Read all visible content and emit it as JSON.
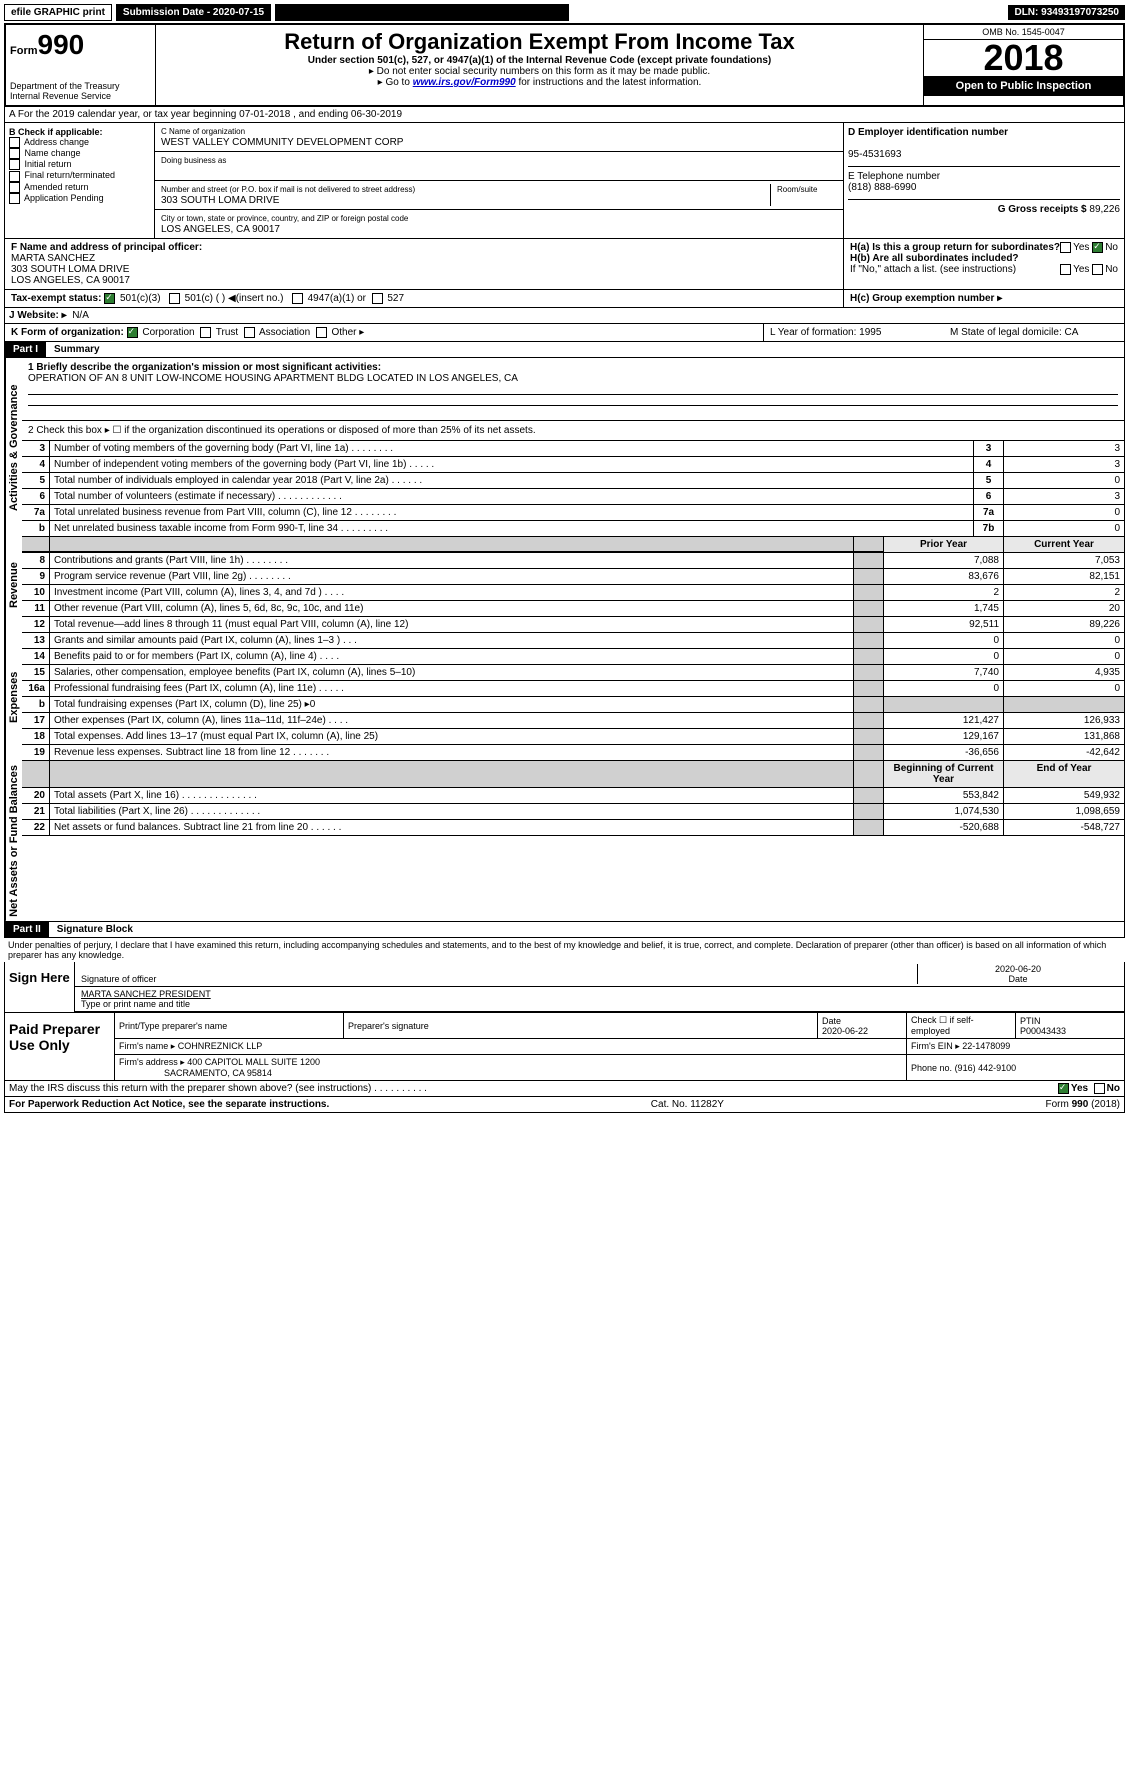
{
  "topbar": {
    "efile": "efile GRAPHIC print",
    "submission_label": "Submission Date - 2020-07-15",
    "dln": "DLN: 93493197073250"
  },
  "header": {
    "form_prefix": "Form",
    "form_number": "990",
    "dept": "Department of the Treasury\nInternal Revenue Service",
    "title": "Return of Organization Exempt From Income Tax",
    "subtitle": "Under section 501(c), 527, or 4947(a)(1) of the Internal Revenue Code (except private foundations)",
    "note1": "▸ Do not enter social security numbers on this form as it may be made public.",
    "note2": "▸ Go to www.irs.gov/Form990 for instructions and the latest information.",
    "omb": "OMB No. 1545-0047",
    "year": "2018",
    "open": "Open to Public Inspection"
  },
  "section_a": "A For the 2019 calendar year, or tax year beginning 07-01-2018   , and ending 06-30-2019",
  "box_b": {
    "label": "B Check if applicable:",
    "opts": [
      "Address change",
      "Name change",
      "Initial return",
      "Final return/terminated",
      "Amended return",
      "Application Pending"
    ]
  },
  "box_c": {
    "name_label": "C Name of organization",
    "name": "WEST VALLEY COMMUNITY DEVELOPMENT CORP",
    "dba_label": "Doing business as",
    "addr_label": "Number and street (or P.O. box if mail is not delivered to street address)",
    "room_label": "Room/suite",
    "addr": "303 SOUTH LOMA DRIVE",
    "city_label": "City or town, state or province, country, and ZIP or foreign postal code",
    "city": "LOS ANGELES, CA  90017"
  },
  "box_d": {
    "label": "D Employer identification number",
    "ein": "95-4531693",
    "phone_label": "E Telephone number",
    "phone": "(818) 888-6990",
    "gross_label": "G Gross receipts $",
    "gross": "89,226"
  },
  "box_f": {
    "label": "F Name and address of principal officer:",
    "name": "MARTA SANCHEZ",
    "addr1": "303 SOUTH LOMA DRIVE",
    "addr2": "LOS ANGELES, CA  90017"
  },
  "box_h": {
    "a": "H(a)  Is this a group return for subordinates?",
    "b": "H(b)  Are all subordinates included?",
    "note": "If \"No,\" attach a list. (see instructions)",
    "c": "H(c)  Group exemption number ▸",
    "yes": "Yes",
    "no": "No"
  },
  "tax_exempt": {
    "label": "Tax-exempt status:",
    "opt1": "501(c)(3)",
    "opt2": "501(c) (  ) ◀(insert no.)",
    "opt3": "4947(a)(1) or",
    "opt4": "527"
  },
  "website": {
    "label": "J   Website: ▸",
    "val": "N/A"
  },
  "box_k": {
    "label": "K Form of organization:",
    "opts": [
      "Corporation",
      "Trust",
      "Association",
      "Other ▸"
    ],
    "l": "L Year of formation: 1995",
    "m": "M State of legal domicile: CA"
  },
  "part1": {
    "header": "Part I",
    "title": "Summary",
    "q1": "1  Briefly describe the organization's mission or most significant activities:",
    "q1_ans": "OPERATION OF AN 8 UNIT LOW-INCOME HOUSING APARTMENT BLDG LOCATED IN LOS ANGELES, CA",
    "q2": "2   Check this box ▸ ☐  if the organization discontinued its operations or disposed of more than 25% of its net assets.",
    "sections": {
      "gov": "Activities & Governance",
      "rev": "Revenue",
      "exp": "Expenses",
      "net": "Net Assets or Fund Balances"
    },
    "lines_gov": [
      {
        "n": "3",
        "t": "Number of voting members of the governing body (Part VI, line 1a)  .    .    .    .    .    .    .    .",
        "k": "3",
        "v": "3"
      },
      {
        "n": "4",
        "t": "Number of independent voting members of the governing body (Part VI, line 1b)  .    .    .    .    .",
        "k": "4",
        "v": "3"
      },
      {
        "n": "5",
        "t": "Total number of individuals employed in calendar year 2018 (Part V, line 2a)  .    .    .    .    .    .",
        "k": "5",
        "v": "0"
      },
      {
        "n": "6",
        "t": "Total number of volunteers (estimate if necessary)  .    .    .    .    .    .    .    .    .    .    .    .",
        "k": "6",
        "v": "3"
      },
      {
        "n": "7a",
        "t": "Total unrelated business revenue from Part VIII, column (C), line 12  .    .    .    .    .    .    .    .",
        "k": "7a",
        "v": "0"
      },
      {
        "n": "b",
        "t": "Net unrelated business taxable income from Form 990-T, line 34  .    .    .    .    .    .    .    .    .",
        "k": "7b",
        "v": "0"
      }
    ],
    "col_hdr": {
      "prior": "Prior Year",
      "current": "Current Year",
      "begin": "Beginning of Current Year",
      "end": "End of Year"
    },
    "lines_rev": [
      {
        "n": "8",
        "t": "Contributions and grants (Part VIII, line 1h)  .    .    .    .    .    .    .    .",
        "p": "7,088",
        "c": "7,053"
      },
      {
        "n": "9",
        "t": "Program service revenue (Part VIII, line 2g)  .    .    .    .    .    .    .    .",
        "p": "83,676",
        "c": "82,151"
      },
      {
        "n": "10",
        "t": "Investment income (Part VIII, column (A), lines 3, 4, and 7d )  .    .    .    .",
        "p": "2",
        "c": "2"
      },
      {
        "n": "11",
        "t": "Other revenue (Part VIII, column (A), lines 5, 6d, 8c, 9c, 10c, and 11e)",
        "p": "1,745",
        "c": "20"
      },
      {
        "n": "12",
        "t": "Total revenue—add lines 8 through 11 (must equal Part VIII, column (A), line 12)",
        "p": "92,511",
        "c": "89,226"
      }
    ],
    "lines_exp": [
      {
        "n": "13",
        "t": "Grants and similar amounts paid (Part IX, column (A), lines 1–3 )  .    .    .",
        "p": "0",
        "c": "0"
      },
      {
        "n": "14",
        "t": "Benefits paid to or for members (Part IX, column (A), line 4)  .    .    .    .",
        "p": "0",
        "c": "0"
      },
      {
        "n": "15",
        "t": "Salaries, other compensation, employee benefits (Part IX, column (A), lines 5–10)",
        "p": "7,740",
        "c": "4,935"
      },
      {
        "n": "16a",
        "t": "Professional fundraising fees (Part IX, column (A), line 11e)  .    .    .    .    .",
        "p": "0",
        "c": "0"
      },
      {
        "n": "b",
        "t": "Total fundraising expenses (Part IX, column (D), line 25) ▸0",
        "p": "",
        "c": "",
        "shade": true
      },
      {
        "n": "17",
        "t": "Other expenses (Part IX, column (A), lines 11a–11d, 11f–24e)  .    .    .    .",
        "p": "121,427",
        "c": "126,933"
      },
      {
        "n": "18",
        "t": "Total expenses. Add lines 13–17 (must equal Part IX, column (A), line 25)",
        "p": "129,167",
        "c": "131,868"
      },
      {
        "n": "19",
        "t": "Revenue less expenses. Subtract line 18 from line 12  .    .    .    .    .    .    .",
        "p": "-36,656",
        "c": "-42,642"
      }
    ],
    "lines_net": [
      {
        "n": "20",
        "t": "Total assets (Part X, line 16)  .    .    .    .    .    .    .    .    .    .    .    .    .    .",
        "p": "553,842",
        "c": "549,932"
      },
      {
        "n": "21",
        "t": "Total liabilities (Part X, line 26)  .    .    .    .    .    .    .    .    .    .    .    .    .",
        "p": "1,074,530",
        "c": "1,098,659"
      },
      {
        "n": "22",
        "t": "Net assets or fund balances. Subtract line 21 from line 20  .    .    .    .    .    .",
        "p": "-520,688",
        "c": "-548,727"
      }
    ]
  },
  "part2": {
    "header": "Part II",
    "title": "Signature Block",
    "perjury": "Under penalties of perjury, I declare that I have examined this return, including accompanying schedules and statements, and to the best of my knowledge and belief, it is true, correct, and complete. Declaration of preparer (other than officer) is based on all information of which preparer has any knowledge.",
    "sign_here": "Sign Here",
    "sig_officer": "Signature of officer",
    "sig_date": "2020-06-20",
    "date_label": "Date",
    "officer_name": "MARTA SANCHEZ  PRESIDENT",
    "type_name": "Type or print name and title",
    "paid": "Paid Preparer Use Only",
    "prep_name_label": "Print/Type preparer's name",
    "prep_sig_label": "Preparer's signature",
    "prep_date_label": "Date",
    "prep_date": "2020-06-22",
    "check_label": "Check ☐ if self-employed",
    "ptin_label": "PTIN",
    "ptin": "P00043433",
    "firm_name_label": "Firm's name    ▸",
    "firm_name": "COHNREZNICK LLP",
    "firm_ein_label": "Firm's EIN ▸",
    "firm_ein": "22-1478099",
    "firm_addr_label": "Firm's address ▸",
    "firm_addr1": "400 CAPITOL MALL SUITE 1200",
    "firm_addr2": "SACRAMENTO, CA  95814",
    "firm_phone_label": "Phone no.",
    "firm_phone": "(916) 442-9100",
    "discuss": "May the IRS discuss this return with the preparer shown above? (see instructions)   .    .    .    .    .    .    .    .    .    ."
  },
  "footer": {
    "pra": "For Paperwork Reduction Act Notice, see the separate instructions.",
    "cat": "Cat. No. 11282Y",
    "form": "Form 990 (2018)"
  }
}
